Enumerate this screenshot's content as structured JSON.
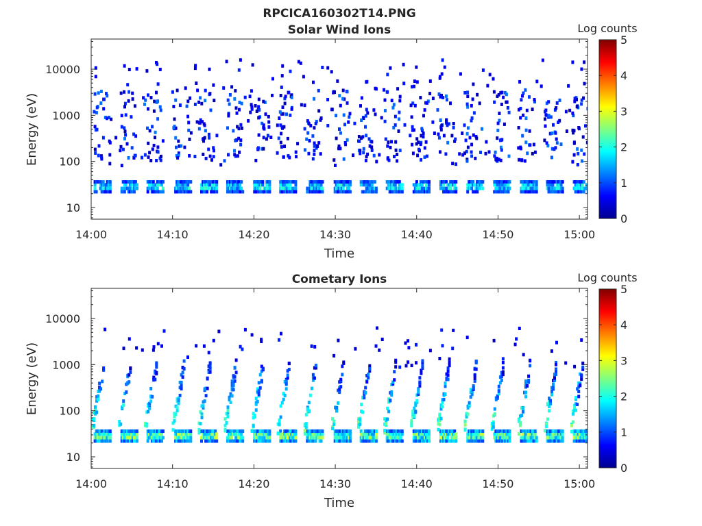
{
  "figure_title": "RPCICA160302T14.PNG",
  "colorbar": {
    "label": "Log counts",
    "ticks": [
      "0",
      "1",
      "2",
      "3",
      "4",
      "5"
    ],
    "range": [
      0,
      5
    ],
    "colormap": "jet"
  },
  "chart_data": [
    {
      "type": "heatmap",
      "title": "Solar Wind Ions",
      "xlabel": "Time",
      "ylabel": "Energy (eV)",
      "y_scale": "log",
      "ylim": [
        5.6,
        45000
      ],
      "x_ticks": [
        "14:00",
        "14:10",
        "14:20",
        "14:30",
        "14:40",
        "14:50",
        "15:00"
      ],
      "y_ticks": [
        "10",
        "100",
        "1000",
        "10000"
      ],
      "xlim_minutes": [
        0,
        61
      ],
      "cycle_minutes": [
        0.3,
        3.6,
        6.8,
        10.2,
        13.4,
        16.6,
        19.9,
        23.1,
        26.4,
        29.8,
        33.0,
        36.2,
        39.5,
        42.8,
        46.1,
        49.4,
        52.7,
        55.9,
        59.2
      ],
      "energy_peak_eV": 30,
      "peak_log_counts": 2.2,
      "background": "sparse counts 100-10000 eV"
    },
    {
      "type": "heatmap",
      "title": "Cometary Ions",
      "xlabel": "Time",
      "ylabel": "Energy (eV)",
      "y_scale": "log",
      "ylim": [
        5.6,
        45000
      ],
      "x_ticks": [
        "14:00",
        "14:10",
        "14:20",
        "14:30",
        "14:40",
        "14:50",
        "15:00"
      ],
      "y_ticks": [
        "10",
        "100",
        "1000",
        "10000"
      ],
      "xlim_minutes": [
        0,
        61
      ],
      "cycle_minutes": [
        0.3,
        3.6,
        6.8,
        10.2,
        13.4,
        16.6,
        19.9,
        23.1,
        26.4,
        29.8,
        33.0,
        36.2,
        39.5,
        42.8,
        46.1,
        49.4,
        52.7,
        55.9,
        59.2
      ],
      "energy_peak_eV": 30,
      "peak_log_counts": 3.0,
      "background": "dispersion arcs 40-1000 eV"
    }
  ]
}
